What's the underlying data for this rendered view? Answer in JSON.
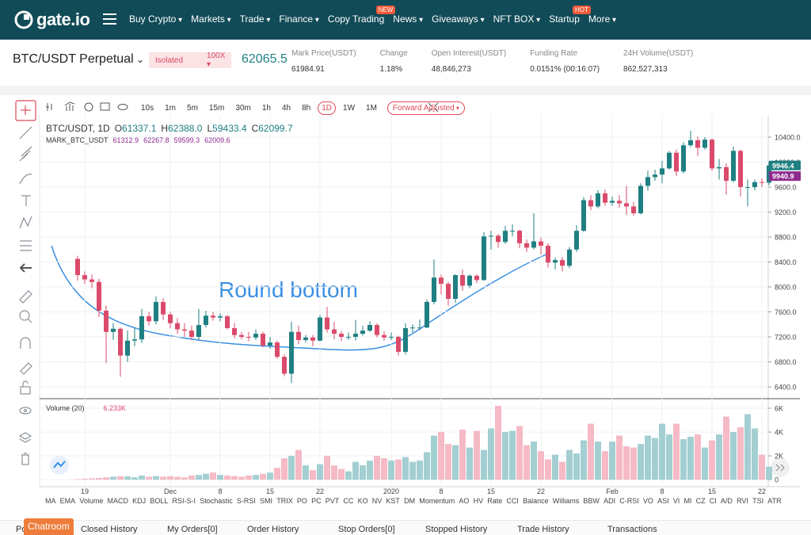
{
  "nav": {
    "logo": "gate.io",
    "menu": [
      {
        "label": "Buy Crypto",
        "dropdown": true
      },
      {
        "label": "Markets",
        "dropdown": true
      },
      {
        "label": "Trade",
        "dropdown": true
      },
      {
        "label": "Finance",
        "dropdown": true
      },
      {
        "label": "Copy Trading",
        "badge": "NEW"
      },
      {
        "label": "News",
        "dropdown": true
      },
      {
        "label": "Giveaways",
        "dropdown": true
      },
      {
        "label": "NFT BOX",
        "dropdown": true
      },
      {
        "label": "Startup",
        "badge": "HOT"
      },
      {
        "label": "More",
        "dropdown": true
      }
    ]
  },
  "market": {
    "symbol": "BTC/USDT Perpetual",
    "margin_mode": "Isolated",
    "leverage": "100X",
    "last_price": "62065.5",
    "stats": [
      {
        "label": "Mark Price(USDT)",
        "value": "61984.91"
      },
      {
        "label": "Change",
        "value": "1.18%"
      },
      {
        "label": "Open Interest(USDT)",
        "value": "48,846,273"
      },
      {
        "label": "Funding Rate",
        "value": "0.0151% (00:16:07)"
      },
      {
        "label": "24H Volume(USDT)",
        "value": "862,527,313"
      }
    ]
  },
  "toolbar": {
    "intervals": [
      "10s",
      "1m",
      "5m",
      "15m",
      "30m",
      "1h",
      "4h",
      "8h",
      "1D",
      "1W",
      "1M"
    ],
    "active_interval": 8,
    "adjust": "Forward Adjusted"
  },
  "chart_data": {
    "type": "candlestick",
    "symbol": "BTC/USDT, 1D",
    "ohlc_legend": [
      {
        "label": "O",
        "value": "61337.1"
      },
      {
        "label": "H",
        "value": "62388.0"
      },
      {
        "label": "L",
        "value": "59433.4"
      },
      {
        "label": "C",
        "value": "62099.7"
      }
    ],
    "mark_legend": {
      "name": "MARK_BTC_USDT",
      "values": [
        "61312.9",
        "62267.8",
        "59599.3",
        "62009.6"
      ]
    },
    "annotation": "Round bottom",
    "categories": [
      null,
      "19",
      null,
      null,
      null,
      null,
      null,
      null,
      null,
      null,
      null,
      null,
      null,
      "Dec",
      null,
      null,
      null,
      null,
      null,
      null,
      "8",
      null,
      null,
      null,
      null,
      null,
      null,
      "15",
      null,
      null,
      null,
      null,
      null,
      null,
      "22",
      null,
      null,
      null,
      null,
      null,
      null,
      null,
      null,
      null,
      "2020",
      null,
      null,
      null,
      null,
      null,
      null,
      "8",
      null,
      null,
      null,
      null,
      null,
      null,
      "15",
      null,
      null,
      null,
      null,
      null,
      null,
      "22",
      null,
      null,
      null,
      null,
      null,
      null,
      null,
      null,
      null,
      "Feb",
      null,
      null,
      null,
      null,
      null,
      null,
      "8",
      null,
      null,
      null,
      null,
      null,
      null,
      "15",
      null,
      null,
      null,
      null,
      null,
      null,
      "22",
      null
    ],
    "open": [
      8450,
      8190,
      8120,
      8080,
      7620,
      7280,
      7330,
      6900,
      7140,
      7160,
      7530,
      7450,
      7760,
      7560,
      7420,
      7320,
      7300,
      7200,
      7390,
      7540,
      7510,
      7530,
      7340,
      7230,
      7200,
      7190,
      7250,
      7060,
      7110,
      6880,
      6610,
      7280,
      7150,
      7190,
      7140,
      7510,
      7320,
      7250,
      7200,
      7200,
      7250,
      7300,
      7390,
      7230,
      7190,
      7200,
      6960,
      7340,
      7350,
      7350,
      7760,
      8150,
      8050,
      7810,
      8190,
      8020,
      8180,
      8110,
      8810,
      8820,
      8720,
      8900,
      8900,
      8700,
      8630,
      8730,
      8660,
      8390,
      8430,
      8340,
      8600,
      8900,
      9390,
      9290,
      9500,
      9350,
      9380,
      9340,
      9290,
      9180,
      9620,
      9760,
      9800,
      9900,
      10150,
      9850,
      10270,
      10350,
      10230,
      10360,
      9900,
      9920,
      9700,
      10180,
      9600,
      9600,
      9680,
      9670
    ],
    "high": [
      8500,
      8250,
      8200,
      8130,
      7700,
      7420,
      7350,
      7300,
      7350,
      7650,
      7600,
      7850,
      7820,
      7600,
      7500,
      7420,
      7380,
      7650,
      7620,
      7600,
      7580,
      7550,
      7420,
      7280,
      7280,
      7320,
      7280,
      7200,
      7140,
      6920,
      7440,
      7380,
      7230,
      7230,
      7550,
      7680,
      7440,
      7290,
      7270,
      7470,
      7380,
      7450,
      7420,
      7290,
      7270,
      7220,
      7420,
      7400,
      7480,
      7800,
      8440,
      8200,
      8080,
      8200,
      8280,
      8200,
      8200,
      8880,
      8900,
      8850,
      8980,
      9000,
      8920,
      8760,
      9180,
      8790,
      8700,
      8470,
      8480,
      8640,
      8990,
      9440,
      9470,
      9550,
      9560,
      9450,
      9470,
      9620,
      9360,
      9660,
      9860,
      9880,
      10020,
      10180,
      10200,
      10320,
      10500,
      10410,
      10400,
      10380,
      10050,
      9980,
      10250,
      10200,
      9720,
      9720,
      9740,
      10000
    ],
    "low": [
      8100,
      8050,
      7980,
      7520,
      6780,
      7150,
      6560,
      6800,
      7050,
      7100,
      7380,
      7400,
      7470,
      7340,
      7250,
      7200,
      7150,
      7150,
      7350,
      7460,
      7450,
      7320,
      7180,
      7160,
      7130,
      7150,
      7030,
      7010,
      6850,
      6570,
      6460,
      7080,
      7110,
      7050,
      7130,
      7270,
      7160,
      7130,
      7150,
      7140,
      7220,
      7280,
      7190,
      7140,
      7150,
      6900,
      6920,
      7270,
      7310,
      7340,
      7720,
      7880,
      7700,
      7750,
      7940,
      7980,
      8060,
      8100,
      8600,
      8630,
      8690,
      8810,
      8620,
      8560,
      8600,
      8520,
      8310,
      8280,
      8250,
      8300,
      8560,
      8880,
      9230,
      9260,
      9300,
      9300,
      9270,
      9150,
      9140,
      9160,
      9540,
      9700,
      9660,
      9880,
      9780,
      9820,
      10240,
      10100,
      10200,
      9860,
      9720,
      9480,
      9680,
      9450,
      9290,
      9550,
      9600,
      9630
    ],
    "close": [
      8190,
      8120,
      8080,
      7620,
      7280,
      7330,
      6900,
      7140,
      7160,
      7530,
      7450,
      7760,
      7560,
      7420,
      7320,
      7300,
      7200,
      7390,
      7540,
      7510,
      7530,
      7340,
      7230,
      7200,
      7190,
      7250,
      7060,
      7110,
      6880,
      6610,
      7280,
      7150,
      7190,
      7140,
      7510,
      7320,
      7250,
      7200,
      7200,
      7250,
      7300,
      7390,
      7230,
      7190,
      7200,
      6960,
      7340,
      7350,
      7350,
      7760,
      8150,
      8050,
      7810,
      8190,
      8020,
      8180,
      8110,
      8810,
      8820,
      8720,
      8900,
      8900,
      8700,
      8630,
      8730,
      8660,
      8390,
      8430,
      8340,
      8600,
      8900,
      9390,
      9290,
      9500,
      9350,
      9380,
      9340,
      9290,
      9180,
      9620,
      9760,
      9800,
      9900,
      10150,
      9850,
      10270,
      10350,
      10230,
      10360,
      9900,
      9920,
      9700,
      10180,
      9600,
      9600,
      9680,
      9670,
      9946.4
    ],
    "up_color": "#1f7f82",
    "down_color": "#db4a6b",
    "ylim": [
      6248,
      10756
    ],
    "yticks": [
      {
        "value": 6400,
        "label": "6400.0"
      },
      {
        "value": 6800,
        "label": "6800.0"
      },
      {
        "value": 7200,
        "label": "7200.0"
      },
      {
        "value": 7600,
        "label": "7600.0"
      },
      {
        "value": 8000,
        "label": "8000.0"
      },
      {
        "value": 8400,
        "label": "8400.0"
      },
      {
        "value": 8800,
        "label": "8800.0"
      },
      {
        "value": 9200,
        "label": "9200.0"
      },
      {
        "value": 9600,
        "label": "9600.0"
      },
      {
        "value": 10000,
        "label": "10000.0"
      },
      {
        "value": 10400,
        "label": "10400.0"
      }
    ],
    "price_tags": [
      {
        "value": 9946.4,
        "color": "#1f7f82"
      },
      {
        "value": 9940.9,
        "color": "#8e2a8e"
      }
    ],
    "grid": true,
    "volume": {
      "title": "Volume (20)",
      "last": "6.233K",
      "values": [
        50,
        80,
        120,
        150,
        200,
        250,
        300,
        280,
        200,
        350,
        250,
        300,
        250,
        300,
        250,
        200,
        350,
        400,
        500,
        600,
        400,
        350,
        300,
        250,
        350,
        400,
        500,
        600,
        1000,
        1800,
        2000,
        2500,
        1200,
        800,
        1300,
        2000,
        1200,
        900,
        700,
        1500,
        1200,
        1600,
        2000,
        1800,
        1600,
        1700,
        1900,
        1500,
        1600,
        2300,
        3700,
        4000,
        3000,
        2900,
        4200,
        2700,
        4100,
        2500,
        4300,
        6200,
        4000,
        4100,
        4500,
        2900,
        3200,
        2400,
        1700,
        2100,
        1500,
        2500,
        2200,
        3300,
        4700,
        3200,
        2400,
        3200,
        3700,
        2800,
        2700,
        3000,
        3700,
        3500,
        4700,
        3800,
        4700,
        3400,
        3600,
        3800,
        2700,
        3300,
        3800,
        5300,
        4000,
        4400,
        5500,
        4300,
        2100,
        1100
      ],
      "ylim": [
        -450,
        6533
      ],
      "yticks": [
        0,
        {
          "value": 2000,
          "label": "2K"
        },
        {
          "value": 4000,
          "label": "4K"
        },
        {
          "value": 6000,
          "label": "6K"
        }
      ],
      "up_color": "#a3cfd2",
      "down_color": "#f5bac5"
    },
    "indicators": [
      "MA",
      "EMA",
      "Volume",
      "MACD",
      "KDJ",
      "BOLL",
      "RSI-S-I",
      "Stochastic",
      "S-RSI",
      "SMI",
      "TRIX",
      "PO",
      "PC",
      "PVT",
      "CC",
      "KO",
      "NV",
      "KST",
      "DM",
      "Momentum",
      "AO",
      "HV",
      "Rate",
      "CCI",
      "Balance",
      "Williams",
      "BBW",
      "ADI",
      "C-RSI",
      "VO",
      "ASI",
      "VI",
      "MI",
      "CZ",
      "CI",
      "A/D",
      "RVI",
      "TSI",
      "ATR"
    ]
  },
  "bottom_tabs": {
    "chatroom": "Chatroom",
    "tabs": [
      "Po",
      "Closed History",
      "My Orders[0]",
      "Order History",
      "Stop Orders[0]",
      "Stopped History",
      "Trade History",
      "Transactions"
    ]
  }
}
